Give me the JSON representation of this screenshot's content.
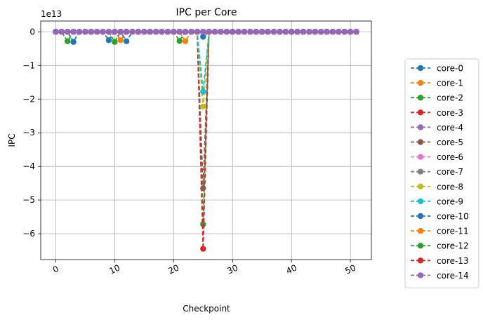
{
  "chart_data": {
    "type": "line",
    "title": "IPC per Core",
    "xlabel": "Checkpoint",
    "ylabel": "IPC",
    "y_offset_label": "1e13",
    "y_scale": 10000000000000,
    "xlim": [
      -2.55,
      53.55
    ],
    "ylim": [
      -6.77,
      0.32
    ],
    "x_ticks": [
      0,
      10,
      20,
      30,
      40,
      50
    ],
    "x_tick_labels": [
      "0",
      "10",
      "20",
      "30",
      "40",
      "50"
    ],
    "y_ticks": [
      0,
      -1,
      -2,
      -3,
      -4,
      -5,
      -6
    ],
    "y_tick_labels": [
      "0",
      "−1",
      "−2",
      "−3",
      "−4",
      "−5",
      "−6"
    ],
    "grid": true,
    "legend_position": "outside-right",
    "line_style": "dashed",
    "marker": "circle",
    "x": [
      0,
      1,
      2,
      3,
      4,
      5,
      6,
      7,
      8,
      9,
      10,
      11,
      12,
      13,
      14,
      15,
      16,
      17,
      18,
      19,
      20,
      21,
      22,
      23,
      24,
      25,
      26,
      27,
      28,
      29,
      30,
      31,
      32,
      33,
      34,
      35,
      36,
      37,
      38,
      39,
      40,
      41,
      42,
      43,
      44,
      45,
      46,
      47,
      48,
      49,
      50,
      51
    ],
    "series": [
      {
        "name": "core-0",
        "color": "#1f77b4",
        "values": [
          0,
          0,
          0,
          -0.3,
          0,
          0,
          0,
          0,
          0,
          -0.25,
          0,
          0,
          -0.28,
          0,
          0,
          0,
          0,
          0,
          0,
          0,
          0,
          0,
          0,
          0,
          0,
          -0.15,
          0,
          0,
          0,
          0,
          0,
          0,
          0,
          0,
          0,
          0,
          0,
          0,
          0,
          0,
          0,
          0,
          0,
          0,
          0,
          0,
          0,
          0,
          0,
          0,
          0,
          0
        ]
      },
      {
        "name": "core-1",
        "color": "#ff7f0e",
        "values": [
          0,
          0,
          0,
          0,
          0,
          0,
          0,
          0,
          0,
          0,
          0,
          -0.25,
          0,
          0,
          0,
          0,
          0,
          0,
          0,
          0,
          0,
          0,
          -0.28,
          0,
          0,
          0,
          0,
          0,
          0,
          0,
          0,
          0,
          0,
          0,
          0,
          0,
          0,
          0,
          0,
          0,
          0,
          0,
          0,
          0,
          0,
          0,
          0,
          0,
          0,
          0,
          0,
          0
        ]
      },
      {
        "name": "core-2",
        "color": "#2ca02c",
        "values": [
          0,
          0,
          -0.28,
          0,
          0,
          0,
          0,
          0,
          0,
          0,
          -0.3,
          0,
          0,
          0,
          0,
          0,
          0,
          0,
          0,
          0,
          0,
          -0.27,
          0,
          0,
          0,
          -5.72,
          0,
          0,
          0,
          0,
          0,
          0,
          0,
          0,
          0,
          0,
          0,
          0,
          0,
          0,
          0,
          0,
          0,
          0,
          0,
          0,
          0,
          0,
          0,
          0,
          0,
          0
        ]
      },
      {
        "name": "core-3",
        "color": "#d62728",
        "values": [
          0,
          0,
          0,
          0,
          0,
          0,
          0,
          0,
          0,
          0,
          0,
          0,
          0,
          0,
          0,
          0,
          0,
          0,
          0,
          0,
          0,
          0,
          0,
          0,
          0,
          -6.45,
          0,
          0,
          0,
          0,
          0,
          0,
          0,
          0,
          0,
          0,
          0,
          0,
          0,
          0,
          0,
          0,
          0,
          0,
          0,
          0,
          0,
          0,
          0,
          0,
          0,
          0
        ]
      },
      {
        "name": "core-4",
        "color": "#9467bd",
        "values": [
          0,
          0,
          0,
          0,
          0,
          0,
          0,
          0,
          0,
          0,
          0,
          0,
          0,
          0,
          0,
          0,
          0,
          0,
          0,
          0,
          0,
          0,
          0,
          0,
          0,
          0,
          0,
          0,
          0,
          0,
          0,
          0,
          0,
          0,
          0,
          0,
          0,
          0,
          0,
          0,
          0,
          0,
          0,
          0,
          0,
          0,
          0,
          0,
          0,
          0,
          0,
          0
        ]
      },
      {
        "name": "core-5",
        "color": "#8c564b",
        "values": [
          0,
          0,
          0,
          0,
          0,
          0,
          0,
          0,
          0,
          0,
          0,
          0,
          0,
          0,
          0,
          0,
          0,
          0,
          0,
          0,
          0,
          0,
          0,
          0,
          0,
          -4.65,
          0,
          0,
          0,
          0,
          0,
          0,
          0,
          0,
          0,
          0,
          0,
          0,
          0,
          0,
          0,
          0,
          0,
          0,
          0,
          0,
          0,
          0,
          0,
          0,
          0,
          0
        ]
      },
      {
        "name": "core-6",
        "color": "#e377c2",
        "values": [
          0,
          0,
          0,
          0,
          0,
          0,
          0,
          0,
          0,
          0,
          0,
          0,
          0,
          0,
          0,
          0,
          0,
          0,
          0,
          0,
          0,
          0,
          0,
          0,
          0,
          0,
          0,
          0,
          0,
          0,
          0,
          0,
          0,
          0,
          0,
          0,
          0,
          0,
          0,
          0,
          0,
          0,
          0,
          0,
          0,
          0,
          0,
          0,
          0,
          0,
          0,
          0
        ]
      },
      {
        "name": "core-7",
        "color": "#7f7f7f",
        "values": [
          0,
          0,
          0,
          0,
          0,
          0,
          0,
          0,
          0,
          0,
          0,
          0,
          0,
          0,
          0,
          0,
          0,
          0,
          0,
          0,
          0,
          0,
          0,
          0,
          0,
          0,
          0,
          0,
          0,
          0,
          0,
          0,
          0,
          0,
          0,
          0,
          0,
          0,
          0,
          0,
          0,
          0,
          0,
          0,
          0,
          0,
          0,
          0,
          0,
          0,
          0,
          0
        ]
      },
      {
        "name": "core-8",
        "color": "#bcbd22",
        "values": [
          0,
          0,
          0,
          0,
          0,
          0,
          0,
          0,
          0,
          0,
          0,
          0,
          0,
          0,
          0,
          0,
          0,
          0,
          0,
          0,
          0,
          0,
          0,
          0,
          0,
          -2.22,
          0,
          0,
          0,
          0,
          0,
          0,
          0,
          0,
          0,
          0,
          0,
          0,
          0,
          0,
          0,
          0,
          0,
          0,
          0,
          0,
          0,
          0,
          0,
          0,
          0,
          0
        ]
      },
      {
        "name": "core-9",
        "color": "#17becf",
        "values": [
          0,
          0,
          0,
          0,
          0,
          0,
          0,
          0,
          0,
          0,
          0,
          0,
          0,
          0,
          0,
          0,
          0,
          0,
          0,
          0,
          0,
          0,
          0,
          0,
          0,
          -1.78,
          0,
          0,
          0,
          0,
          0,
          0,
          0,
          0,
          0,
          0,
          0,
          0,
          0,
          0,
          0,
          0,
          0,
          0,
          0,
          0,
          0,
          0,
          0,
          0,
          0,
          0
        ]
      },
      {
        "name": "core-10",
        "color": "#1f77b4",
        "values": [
          0,
          0,
          0,
          0,
          0,
          0,
          0,
          0,
          0,
          0,
          0,
          0,
          0,
          0,
          0,
          0,
          0,
          0,
          0,
          0,
          0,
          0,
          0,
          0,
          0,
          0,
          0,
          0,
          0,
          0,
          0,
          0,
          0,
          0,
          0,
          0,
          0,
          0,
          0,
          0,
          0,
          0,
          0,
          0,
          0,
          0,
          0,
          0,
          0,
          0,
          0,
          0
        ]
      },
      {
        "name": "core-11",
        "color": "#ff7f0e",
        "values": [
          0,
          0,
          0,
          0,
          0,
          0,
          0,
          0,
          0,
          0,
          0,
          0,
          0,
          0,
          0,
          0,
          0,
          0,
          0,
          0,
          0,
          0,
          0,
          0,
          0,
          0,
          0,
          0,
          0,
          0,
          0,
          0,
          0,
          0,
          0,
          0,
          0,
          0,
          0,
          0,
          0,
          0,
          0,
          0,
          0,
          0,
          0,
          0,
          0,
          0,
          0,
          0
        ]
      },
      {
        "name": "core-12",
        "color": "#2ca02c",
        "values": [
          0,
          0,
          0,
          0,
          0,
          0,
          0,
          0,
          0,
          0,
          0,
          0,
          0,
          0,
          0,
          0,
          0,
          0,
          0,
          0,
          0,
          0,
          0,
          0,
          0,
          0,
          0,
          0,
          0,
          0,
          0,
          0,
          0,
          0,
          0,
          0,
          0,
          0,
          0,
          0,
          0,
          0,
          0,
          0,
          0,
          0,
          0,
          0,
          0,
          0,
          0,
          0
        ]
      },
      {
        "name": "core-13",
        "color": "#d62728",
        "values": [
          0,
          0,
          0,
          0,
          0,
          0,
          0,
          0,
          0,
          0,
          0,
          0,
          0,
          0,
          0,
          0,
          0,
          0,
          0,
          0,
          0,
          0,
          0,
          0,
          0,
          0,
          0,
          0,
          0,
          0,
          0,
          0,
          0,
          0,
          0,
          0,
          0,
          0,
          0,
          0,
          0,
          0,
          0,
          0,
          0,
          0,
          0,
          0,
          0,
          0,
          0,
          0
        ]
      },
      {
        "name": "core-14",
        "color": "#9467bd",
        "values": [
          0,
          0,
          0,
          0,
          0,
          0,
          0,
          0,
          0,
          0,
          0,
          0,
          0,
          0,
          0,
          0,
          0,
          0,
          0,
          0,
          0,
          0,
          0,
          0,
          0,
          0,
          0,
          0,
          0,
          0,
          0,
          0,
          0,
          0,
          0,
          0,
          0,
          0,
          0,
          0,
          0,
          0,
          0,
          0,
          0,
          0,
          0,
          0,
          0,
          0,
          0,
          0
        ]
      }
    ]
  }
}
